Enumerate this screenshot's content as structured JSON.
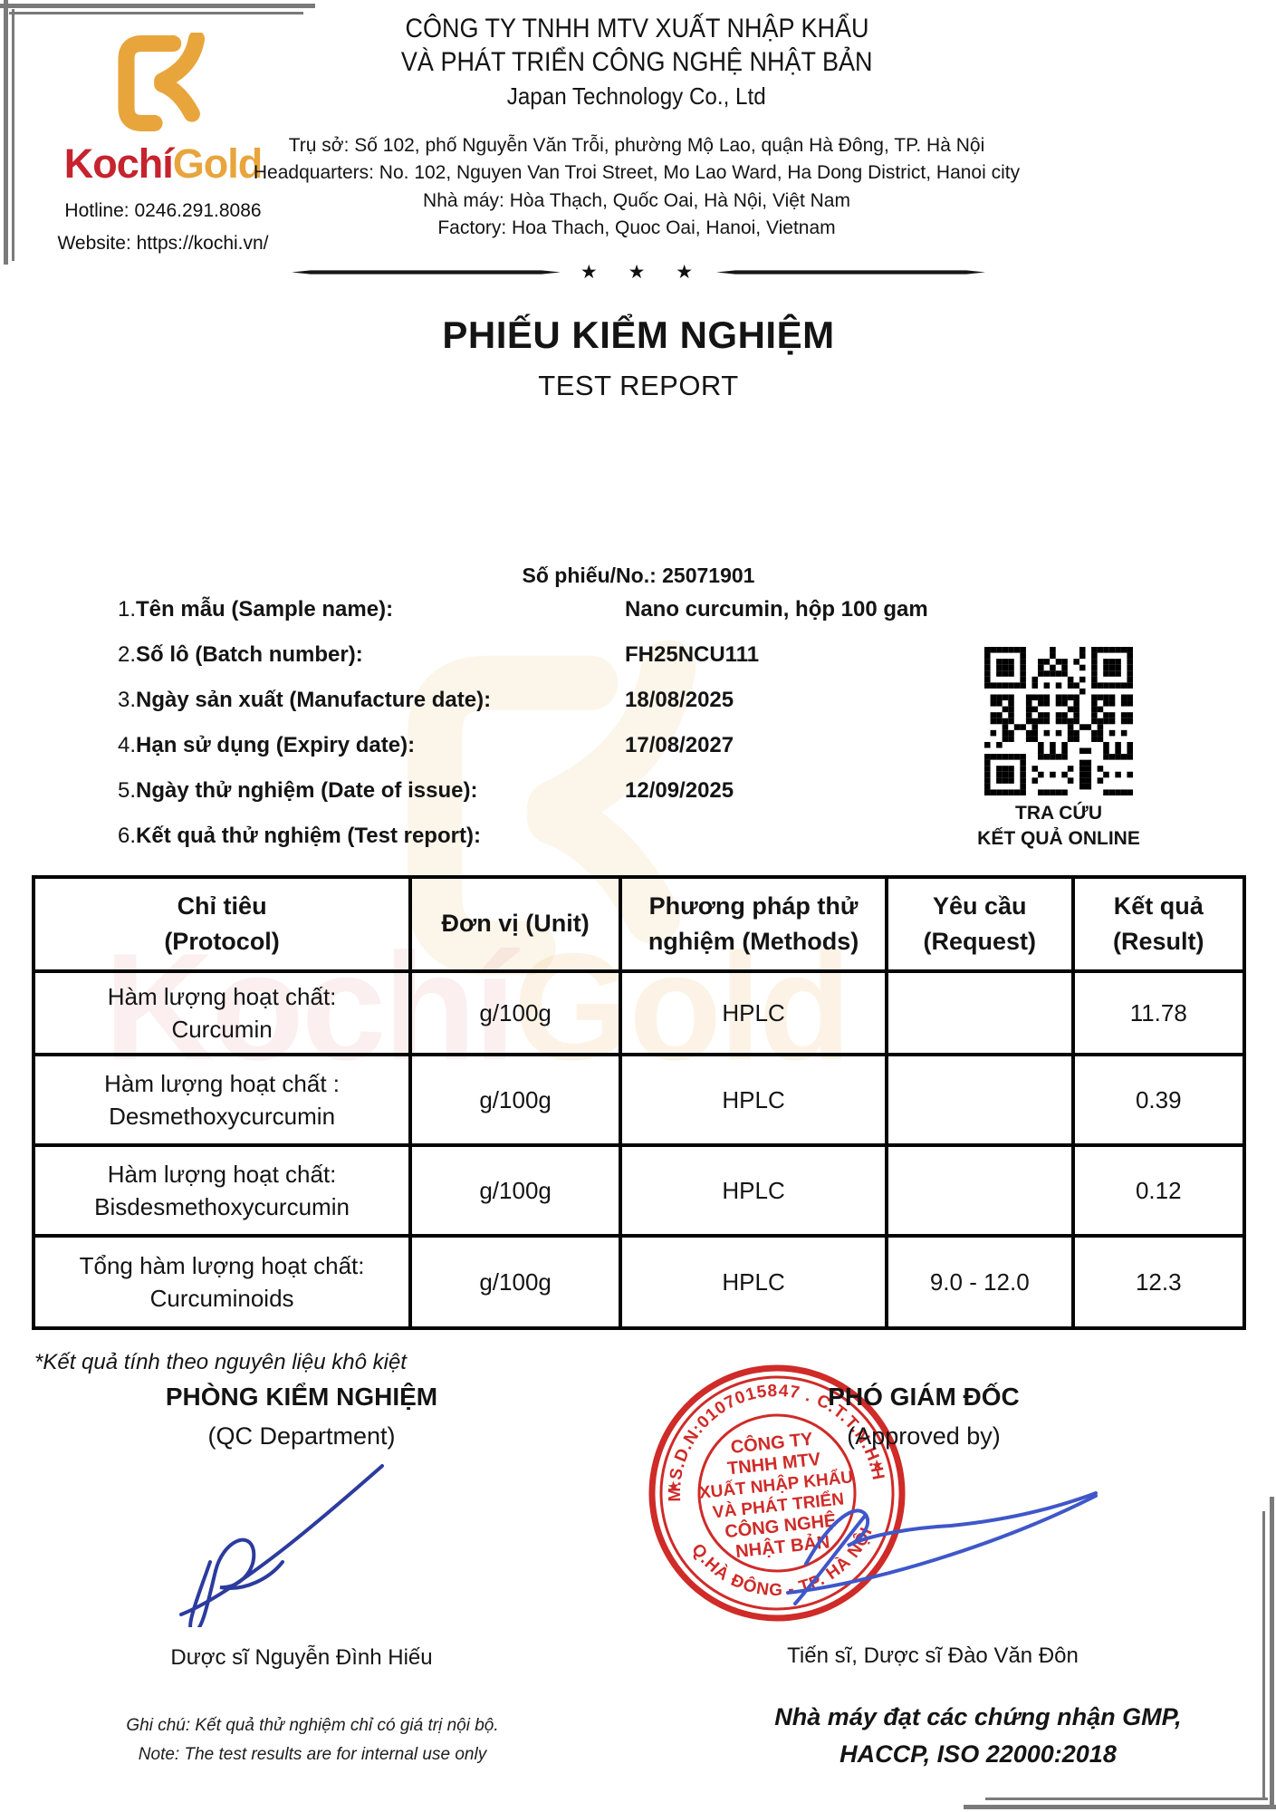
{
  "logo": {
    "brand_red": "Kochí",
    "brand_gold": "Gold",
    "hotline": "Hotline: 0246.291.8086",
    "website": "Website: https://kochi.vn/"
  },
  "header": {
    "company_line1": "CÔNG TY TNHH MTV XUẤT NHẬP KHẨU",
    "company_line2": "VÀ PHÁT TRIỂN CÔNG NGHỆ NHẬT BẢN",
    "company_line3": "Japan Technology Co., Ltd",
    "address1": "Trụ sở: Số 102, phố Nguyễn Văn Trỗi, phường Mộ Lao, quận Hà Đông, TP. Hà Nội",
    "address2": "Headquarters: No. 102, Nguyen Van Troi Street, Mo Lao Ward, Ha Dong District, Hanoi city",
    "address3": "Nhà máy: Hòa Thạch, Quốc Oai, Hà Nội, Việt Nam",
    "address4": "Factory: Hoa Thach, Quoc Oai, Hanoi, Vietnam"
  },
  "divider_stars": "★ ★ ★",
  "title": {
    "vi": "PHIẾU KIỂM NGHIỆM",
    "en": "TEST REPORT"
  },
  "report_no": "Số phiếu/No.: 25071901",
  "info_items": [
    {
      "num": "1.",
      "label": "Tên mẫu (Sample name):",
      "value": "Nano curcumin, hộp 100 gam"
    },
    {
      "num": "2.",
      "label": "Số lô (Batch number):",
      "value": "FH25NCU111"
    },
    {
      "num": "3.",
      "label": "Ngày sản xuất (Manufacture date):",
      "value": "18/08/2025"
    },
    {
      "num": "4.",
      "label": "Hạn sử dụng (Expiry date):",
      "value": "17/08/2027"
    },
    {
      "num": "5.",
      "label": "Ngày thử nghiệm (Date of issue):",
      "value": "12/09/2025"
    },
    {
      "num": "6.",
      "label": "Kết quả thử nghiệm (Test report):",
      "value": ""
    }
  ],
  "qr": {
    "caption1": "TRA CỨU",
    "caption2": "KẾT QUẢ ONLINE"
  },
  "table": {
    "headers": [
      {
        "l1": "Chỉ tiêu",
        "l2": "(Protocol)"
      },
      {
        "l1": "Đơn vị (Unit)",
        "l2": ""
      },
      {
        "l1": "Phương pháp thử",
        "l2": "nghiệm (Methods)"
      },
      {
        "l1": "Yêu cầu",
        "l2": "(Request)"
      },
      {
        "l1": "Kết quả",
        "l2": "(Result)"
      }
    ],
    "rows": [
      {
        "p1": "Hàm lượng hoạt chất:",
        "p2": "Curcumin",
        "unit": "g/100g",
        "method": "HPLC",
        "request": "",
        "result": "11.78"
      },
      {
        "p1": "Hàm lượng hoạt chất :",
        "p2": "Desmethoxycurcumin",
        "unit": "g/100g",
        "method": "HPLC",
        "request": "",
        "result": "0.39"
      },
      {
        "p1": "Hàm lượng hoạt chất:",
        "p2": "Bisdesmethoxycurcumin",
        "unit": "g/100g",
        "method": "HPLC",
        "request": "",
        "result": "0.12"
      },
      {
        "p1": "Tổng hàm lượng hoạt chất:",
        "p2": "Curcuminoids",
        "unit": "g/100g",
        "method": "HPLC",
        "request": "9.0 - 12.0",
        "result": "12.3"
      }
    ]
  },
  "note": "*Kết quả tính theo nguyên liệu khô kiệt",
  "signatures": {
    "left": {
      "dept_vi": "PHÒNG KIỂM NGHIỆM",
      "dept_en": "(QC Department)",
      "name": "Dược sĩ Nguyễn Đình Hiếu"
    },
    "right": {
      "title_vi": "PHÓ GIÁM ĐỐC",
      "title_en": "(Approved by)",
      "name": "Tiến sĩ, Dược sĩ Đào Văn Đôn"
    }
  },
  "stamp": {
    "arc_top": "M.S.D.N:0107015847 . C.T.T.N.H.H",
    "arc_bottom": "Q.HÀ ĐÔNG - TP. HÀ NỘI",
    "star_left": "★",
    "star_right": "★",
    "center1": "CÔNG TY",
    "center2": "TNHH MTV",
    "center3": "XUẤT NHẬP KHẨU",
    "center4": "VÀ PHÁT TRIỂN",
    "center5": "CÔNG NGHỆ",
    "center6": "NHẬT BẢN"
  },
  "watermark": {
    "red": "Kochí",
    "gold": "Gold"
  },
  "footer": {
    "left1": "Ghi chú: Kết quả thử nghiệm chỉ có giá trị nội bộ.",
    "left2": "Note: The test results are for internal use only",
    "right1": "Nhà máy đạt các chứng nhận GMP,",
    "right2": "HACCP, ISO 22000:2018"
  },
  "colors": {
    "brand_red": "#c6232e",
    "brand_gold": "#e8a53c",
    "stamp_red": "#cf2b28",
    "signature_blue_dark": "#2c3b9e",
    "signature_blue": "#3f57c9",
    "frame_gray": "#7a7a7a"
  }
}
